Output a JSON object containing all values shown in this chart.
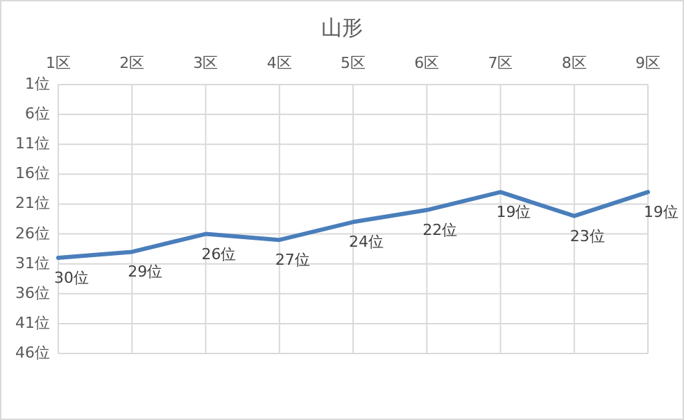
{
  "chart_data": {
    "type": "line",
    "title": "山形",
    "categories": [
      "1区",
      "2区",
      "3区",
      "4区",
      "5区",
      "6区",
      "7区",
      "8区",
      "9区"
    ],
    "series": [
      {
        "color": "#4a7ebb",
        "values": [
          30,
          29,
          26,
          27,
          24,
          22,
          19,
          23,
          19
        ],
        "value_labels": [
          "30位",
          "29位",
          "26位",
          "27位",
          "24位",
          "22位",
          "19位",
          "23位",
          "19位"
        ]
      }
    ],
    "ylim": [
      46,
      1
    ],
    "yticks": [
      {
        "value": 1,
        "label": "1位"
      },
      {
        "value": 6,
        "label": "6位"
      },
      {
        "value": 11,
        "label": "11位"
      },
      {
        "value": 16,
        "label": "16位"
      },
      {
        "value": 21,
        "label": "21位"
      },
      {
        "value": 26,
        "label": "26位"
      },
      {
        "value": 31,
        "label": "31位"
      },
      {
        "value": 36,
        "label": "36位"
      },
      {
        "value": 41,
        "label": "41位"
      },
      {
        "value": 46,
        "label": "46位"
      }
    ],
    "grid": true,
    "marker": "none",
    "line_style": "solid"
  }
}
